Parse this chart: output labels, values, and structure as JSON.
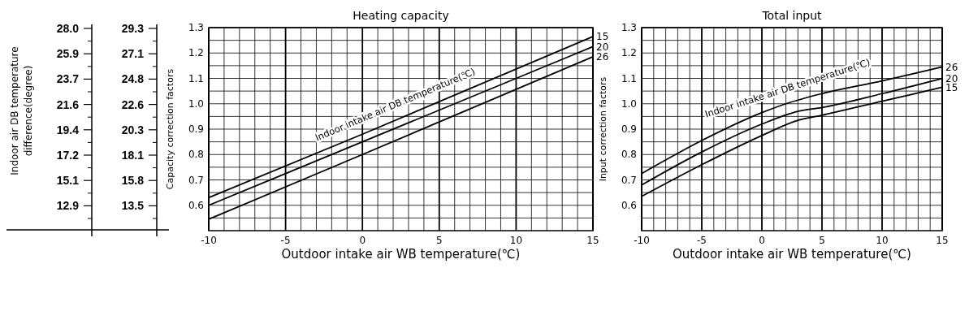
{
  "chart_data": [
    {
      "type": "other",
      "ylabel": "Indoor air DB temperature difference(degree)",
      "annotations": [
        "28.0",
        "25.9",
        "23.7",
        "21.6",
        "19.4",
        "17.2",
        "15.1",
        "12.9",
        "29.3",
        "27.1",
        "24.8",
        "22.6",
        "20.3",
        "18.1",
        "15.8",
        "13.5"
      ]
    },
    {
      "type": "line",
      "title": "Heating capacity",
      "xlabel": "Outdoor intake air WB temperature(℃)",
      "ylabel": "Capacity correction factors",
      "xlim": [
        -10,
        15
      ],
      "xticks": [
        -10,
        -5,
        0,
        5,
        10,
        15
      ],
      "ylim": [
        0.5,
        1.3
      ],
      "yticks": [
        0.6,
        0.7,
        0.8,
        0.9,
        {
          "value": 1,
          "label": "1.0"
        },
        1.1,
        1.2,
        1.3
      ],
      "grid": true,
      "legend": false,
      "annotations": [
        "Indoor intake air DB temperature(℃)"
      ],
      "series": [
        {
          "name": "15",
          "color": "#000000",
          "x": [
            -10,
            0,
            15
          ],
          "values": [
            0.63,
            0.88,
            1.265
          ]
        },
        {
          "name": "20",
          "color": "#000000",
          "x": [
            -10,
            0,
            15
          ],
          "values": [
            0.6,
            0.85,
            1.225
          ]
        },
        {
          "name": "26",
          "color": "#000000",
          "x": [
            -10,
            0,
            15
          ],
          "values": [
            0.545,
            0.8,
            1.185
          ]
        }
      ]
    },
    {
      "type": "line",
      "title": "Total input",
      "xlabel": "Outdoor intake air WB temperature(℃)",
      "ylabel": "Input correction factors",
      "xlim": [
        -10,
        15
      ],
      "xticks": [
        -10,
        -5,
        0,
        5,
        10,
        15
      ],
      "ylim": [
        0.5,
        1.3
      ],
      "yticks": [
        0.6,
        0.7,
        0.8,
        0.9,
        {
          "value": 1,
          "label": "1.0"
        },
        1.1,
        1.2,
        1.3
      ],
      "grid": true,
      "legend": false,
      "annotations": [
        "Indoor intake air DB temperature(℃)"
      ],
      "series": [
        {
          "name": "26",
          "color": "#000000",
          "x": [
            -10,
            -5,
            0,
            2,
            5,
            10,
            15
          ],
          "values": [
            0.725,
            0.855,
            0.965,
            1.0,
            1.04,
            1.09,
            1.145
          ]
        },
        {
          "name": "20",
          "color": "#000000",
          "x": [
            -10,
            -5,
            0,
            3,
            5,
            10,
            15
          ],
          "values": [
            0.68,
            0.81,
            0.92,
            0.97,
            0.985,
            1.04,
            1.1
          ]
        },
        {
          "name": "15",
          "color": "#000000",
          "x": [
            -10,
            -5,
            0,
            3,
            5,
            10,
            15
          ],
          "values": [
            0.635,
            0.76,
            0.875,
            0.935,
            0.955,
            1.01,
            1.065
          ]
        }
      ]
    }
  ]
}
